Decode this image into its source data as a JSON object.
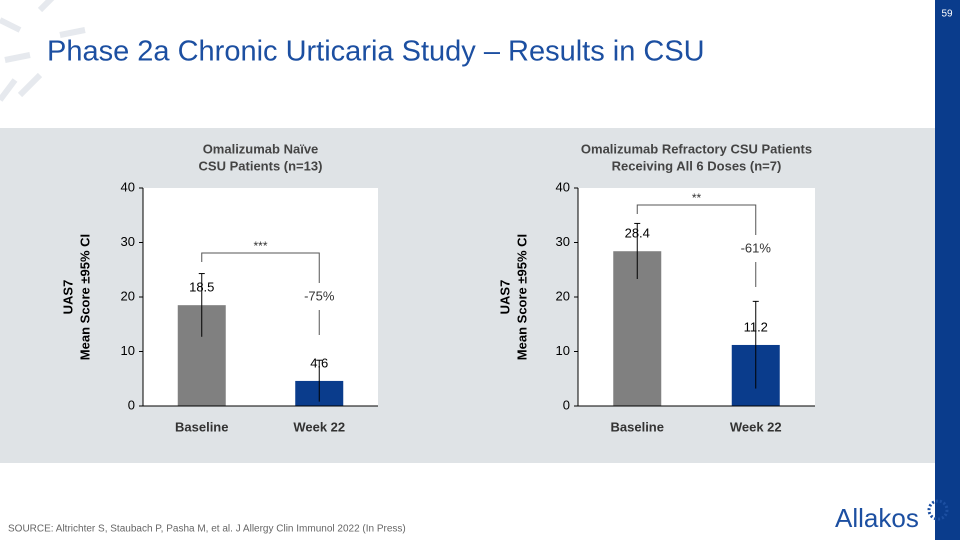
{
  "page_number": "59",
  "title": "Phase 2a Chronic Urticaria Study – Results in CSU",
  "source": "SOURCE: Altrichter S, Staubach P, Pasha M, et al. J Allergy Clin Immunol 2022 (In Press)",
  "logo": "Allakos",
  "chart_data": [
    {
      "type": "bar",
      "title": [
        "Omalizumab Naïve",
        "CSU Patients (n=13)"
      ],
      "y_label": [
        "UAS7",
        "Mean Score ±95% CI"
      ],
      "categories": [
        "Baseline",
        "Week 22"
      ],
      "values": [
        18.5,
        4.6
      ],
      "errors": [
        5.8,
        3.8
      ],
      "colors": [
        "#808080",
        "#0a3c8c"
      ],
      "ylim": [
        0,
        40
      ],
      "yticks": [
        0,
        10,
        20,
        30,
        40
      ],
      "annotations": [
        "***",
        "-75%"
      ]
    },
    {
      "type": "bar",
      "title": [
        "Omalizumab Refractory CSU Patients",
        "Receiving All 6 Doses (n=7)"
      ],
      "y_label": [
        "UAS7",
        "Mean Score ±95% CI"
      ],
      "categories": [
        "Baseline",
        "Week 22"
      ],
      "values": [
        28.4,
        11.2
      ],
      "errors": [
        5.1,
        8.0
      ],
      "colors": [
        "#808080",
        "#0a3c8c"
      ],
      "ylim": [
        0,
        40
      ],
      "yticks": [
        0,
        10,
        20,
        30,
        40
      ],
      "annotations": [
        "**",
        "-61%"
      ]
    }
  ]
}
